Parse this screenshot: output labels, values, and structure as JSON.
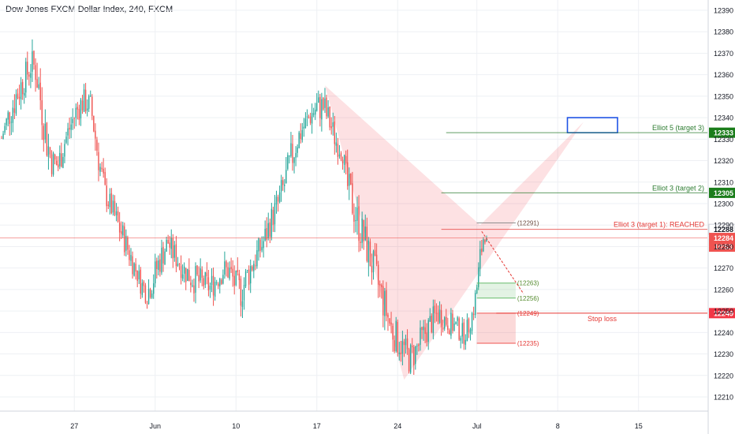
{
  "chart_data": {
    "type": "candlestick",
    "title": "Dow Jones FXCM Dollar Index, 240, FXCM",
    "ylim": [
      12210,
      12395
    ],
    "y_ticks": [
      12210,
      12220,
      12230,
      12240,
      12250,
      12260,
      12270,
      12280,
      12290,
      12300,
      12310,
      12320,
      12330,
      12340,
      12350,
      12360,
      12370,
      12380,
      12390
    ],
    "x_ticks": [
      "27",
      "Jun",
      "10",
      "17",
      "24",
      "Jul",
      "8",
      "15"
    ],
    "x_tick_bars": [
      45,
      95,
      145,
      195,
      245,
      294,
      344,
      394
    ],
    "last_price": 12284,
    "countdown": "10:53",
    "envelope": [
      [
        0,
        12333,
        12328
      ],
      [
        4,
        12348,
        12332
      ],
      [
        9,
        12360,
        12340
      ],
      [
        14,
        12366,
        12350
      ],
      [
        18,
        12372,
        12356
      ],
      [
        21,
        12375,
        12352
      ],
      [
        24,
        12360,
        12338
      ],
      [
        28,
        12340,
        12318
      ],
      [
        31,
        12328,
        12312
      ],
      [
        35,
        12325,
        12310
      ],
      [
        38,
        12335,
        12318
      ],
      [
        42,
        12342,
        12328
      ],
      [
        46,
        12350,
        12335
      ],
      [
        50,
        12355,
        12340
      ],
      [
        55,
        12352,
        12340
      ],
      [
        58,
        12340,
        12322
      ],
      [
        61,
        12325,
        12308
      ],
      [
        64,
        12312,
        12298
      ],
      [
        68,
        12304,
        12292
      ],
      [
        72,
        12298,
        12282
      ],
      [
        76,
        12290,
        12276
      ],
      [
        80,
        12282,
        12268
      ],
      [
        84,
        12272,
        12262
      ],
      [
        87,
        12268,
        12255
      ],
      [
        90,
        12265,
        12252
      ],
      [
        93,
        12270,
        12256
      ],
      [
        96,
        12278,
        12262
      ],
      [
        100,
        12285,
        12270
      ],
      [
        103,
        12288,
        12276
      ],
      [
        106,
        12284,
        12270
      ],
      [
        110,
        12280,
        12266
      ],
      [
        113,
        12276,
        12262
      ],
      [
        117,
        12274,
        12258
      ],
      [
        121,
        12272,
        12256
      ],
      [
        125,
        12270,
        12256
      ],
      [
        129,
        12268,
        12254
      ],
      [
        133,
        12272,
        12258
      ],
      [
        137,
        12276,
        12262
      ],
      [
        141,
        12275,
        12262
      ],
      [
        145,
        12270,
        12253
      ],
      [
        148,
        12268,
        12250
      ],
      [
        151,
        12274,
        12255
      ],
      [
        155,
        12280,
        12264
      ],
      [
        159,
        12285,
        12270
      ],
      [
        163,
        12292,
        12276
      ],
      [
        167,
        12300,
        12286
      ],
      [
        171,
        12308,
        12292
      ],
      [
        175,
        12318,
        12300
      ],
      [
        179,
        12330,
        12310
      ],
      [
        183,
        12338,
        12322
      ],
      [
        187,
        12342,
        12330
      ],
      [
        191,
        12348,
        12334
      ],
      [
        195,
        12352,
        12338
      ],
      [
        199,
        12354,
        12336
      ],
      [
        203,
        12345,
        12330
      ],
      [
        207,
        12336,
        12322
      ],
      [
        211,
        12330,
        12318
      ],
      [
        213,
        12320,
        12300
      ],
      [
        217,
        12310,
        12290
      ],
      [
        221,
        12300,
        12280
      ],
      [
        225,
        12292,
        12272
      ],
      [
        229,
        12282,
        12262
      ],
      [
        233,
        12272,
        12252
      ],
      [
        237,
        12262,
        12242
      ],
      [
        241,
        12252,
        12232
      ],
      [
        245,
        12245,
        12228
      ],
      [
        249,
        12240,
        12224
      ],
      [
        252,
        12236,
        12220
      ],
      [
        255,
        12238,
        12222
      ],
      [
        258,
        12242,
        12226
      ],
      [
        262,
        12248,
        12232
      ],
      [
        266,
        12252,
        12238
      ],
      [
        270,
        12256,
        12242
      ],
      [
        274,
        12252,
        12240
      ],
      [
        278,
        12250,
        12238
      ],
      [
        282,
        12248,
        12236
      ],
      [
        286,
        12244,
        12234
      ],
      [
        289,
        12248,
        12238
      ],
      [
        292,
        12256,
        12246
      ],
      [
        294,
        12268,
        12254
      ],
      [
        296,
        12282,
        12266
      ],
      [
        298,
        12288,
        12280
      ],
      [
        300,
        12287,
        12283
      ]
    ],
    "pattern": {
      "x_points": [
        200,
        249,
        296,
        360
      ],
      "y_points": [
        12355,
        12218,
        12290,
        12338
      ],
      "color": "rgba(242,54,69,0.15)",
      "projection_end": [
        318,
        12258
      ]
    },
    "levels": [
      {
        "name": "Elliot 5 (target 3)",
        "price": 12333,
        "x_start": 275,
        "color": "#2e7d32",
        "badge_bg": "#1b7d1b"
      },
      {
        "name": "Elliot 3 (target 2)",
        "price": 12305,
        "x_start": 272,
        "color": "#2e7d32",
        "badge_bg": "#1b7d1b"
      },
      {
        "name": "Elliot 3 (target 1): REACHED",
        "price": 12288,
        "x_start": 272,
        "color": "#e53935",
        "badge_bg": "#ffffff"
      }
    ],
    "target_box": {
      "x_range": [
        350,
        381
      ],
      "price_range": [
        12333,
        12340
      ],
      "color": "#1e53e5"
    },
    "zones": [
      {
        "name": "entry",
        "x_range": [
          292,
          318
        ],
        "upper": 12263,
        "lower": 12256,
        "upper_label": "(12263)",
        "lower_label": "(12256)",
        "color": "#66bb6a"
      },
      {
        "name": "stop",
        "x_range": [
          292,
          318
        ],
        "upper": 12249,
        "lower": 12235,
        "upper_label": "(12249)",
        "lower_label": "(12235)",
        "color": "#ef5350",
        "label": "Stop loss"
      }
    ],
    "target1_mark": {
      "label": "(12291)",
      "price": 12291,
      "x_range": [
        292,
        318
      ]
    },
    "stop_price": 12249,
    "stop_badge": "12249",
    "level_badges": [
      "12333",
      "12305",
      "12288"
    ],
    "price_badge": "12284"
  }
}
